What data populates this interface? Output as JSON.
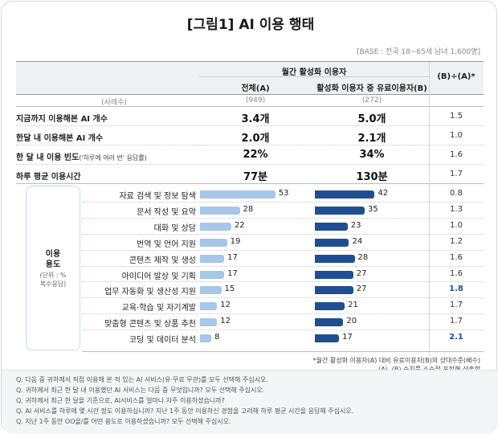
{
  "title": "[그림1] AI 이용 행태",
  "base": "[BASE : 전국 18~65세 남녀 1,600명]",
  "header": {
    "group": "월간 활성화 이용자",
    "col_a": "전체(A)",
    "col_b": "활성화 이용자 중 유료이용자(B)",
    "col_ratio": "(B)÷(A)*"
  },
  "cases": {
    "label": "(사례수)",
    "a": "(949)",
    "b": "(272)"
  },
  "summary_rows": [
    {
      "label": "지금까지 이용해본 AI 개수",
      "sub": "",
      "a": "3.4개",
      "b": "5.0개",
      "ratio": "1.5"
    },
    {
      "label": "한달 내 이용해본 AI 개수",
      "sub": "",
      "a": "2.0개",
      "b": "2.1개",
      "ratio": "1.0"
    },
    {
      "label": "한 달 내 이용 빈도",
      "sub": "('하루에 여러 번' 응답률)",
      "a": "22%",
      "b": "34%",
      "ratio": "1.6"
    },
    {
      "label": "하루 평균 이용시간",
      "sub": "",
      "a": "77분",
      "b": "130분",
      "ratio": "1.7"
    }
  ],
  "use_block": {
    "title": "이용\n용도",
    "unit": "(단위 : %\n복수응답)"
  },
  "chart_data": {
    "type": "bar",
    "orientation": "horizontal",
    "categories": [
      "자료 검색 및 정보 탐색",
      "문서 작성 및 요약",
      "대화 및 상담",
      "번역 및 언어 지원",
      "콘텐츠 제작 및 생성",
      "아이디어 발상 및 기획",
      "업무 자동화 및 생산성 지원",
      "교육·학습 및 자기계발",
      "맞춤형 콘텐츠 및 상품 추천",
      "코딩 및 데이터 분석"
    ],
    "series": [
      {
        "name": "전체(A)",
        "values": [
          53,
          28,
          22,
          19,
          17,
          17,
          15,
          12,
          12,
          8
        ],
        "color": "#a6c6ea"
      },
      {
        "name": "활성화 이용자 중 유료이용자(B)",
        "values": [
          42,
          35,
          23,
          24,
          28,
          27,
          27,
          21,
          20,
          17
        ],
        "color": "#1f4e93"
      }
    ],
    "ratio": [
      "0.8",
      "1.3",
      "1.0",
      "1.2",
      "1.6",
      "1.6",
      "1.8",
      "1.7",
      "1.7",
      "2.1"
    ],
    "highlight_ratio": [
      false,
      false,
      false,
      false,
      false,
      false,
      true,
      false,
      false,
      true
    ],
    "highlight_color": "#1f4fa8",
    "xlim": [
      0,
      60
    ]
  },
  "notes": [
    "*월간 활성화 이용자(A) 대비 유료이용자(B)의 상대수준(배수)",
    "(A), (B) 수치를 소수점 포함해 산출함"
  ],
  "questions": [
    "Q. 다음 중 귀하께서 직접 이용해 본 적 있는 AI 서비스(유·무료 무관)를 모두 선택해 주십시오.",
    "Q. 귀하께서 최근 한 달 내 이용했던 AI 서비스는 다음 중 무엇입니까? 모두 선택해 주십시오.",
    "Q. 귀하께서 최근 한 달을 기준으로, AI서비스를 얼마나 자주 이용하셨습니까?",
    "Q. AI 서비스를 하루에 몇 시간 정도 이용하십니까? 지난 1주 동안 이용하신 경험을 고려해 하루 평균 시간을 응답해 주십시오.",
    "Q. 지난 1주 동안 OO을/를 어떤 용도로 이용하셨습니까? 모두 선택해 주십시오."
  ]
}
